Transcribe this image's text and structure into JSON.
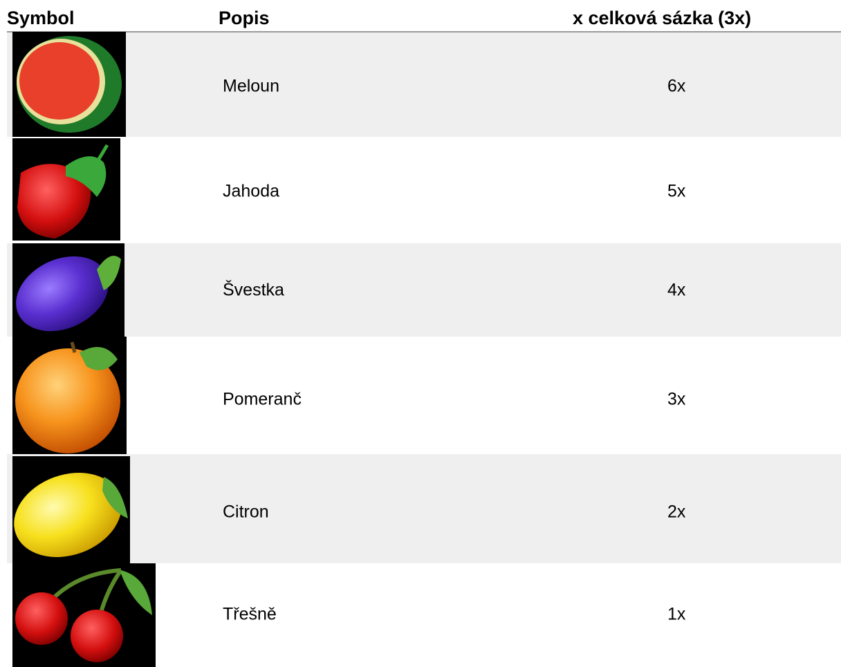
{
  "table": {
    "header": [
      "Symbol",
      "Popis",
      "x celková sázka (3x)"
    ],
    "rows": [
      {
        "description": "Meloun",
        "payout": "6x"
      },
      {
        "description": "Jahoda",
        "payout": "5x"
      },
      {
        "description": "Švestka",
        "payout": "4x"
      },
      {
        "description": "Pomeranč",
        "payout": "3x"
      },
      {
        "description": "Citron",
        "payout": "2x"
      },
      {
        "description": "Třešně",
        "payout": "1x"
      }
    ]
  }
}
